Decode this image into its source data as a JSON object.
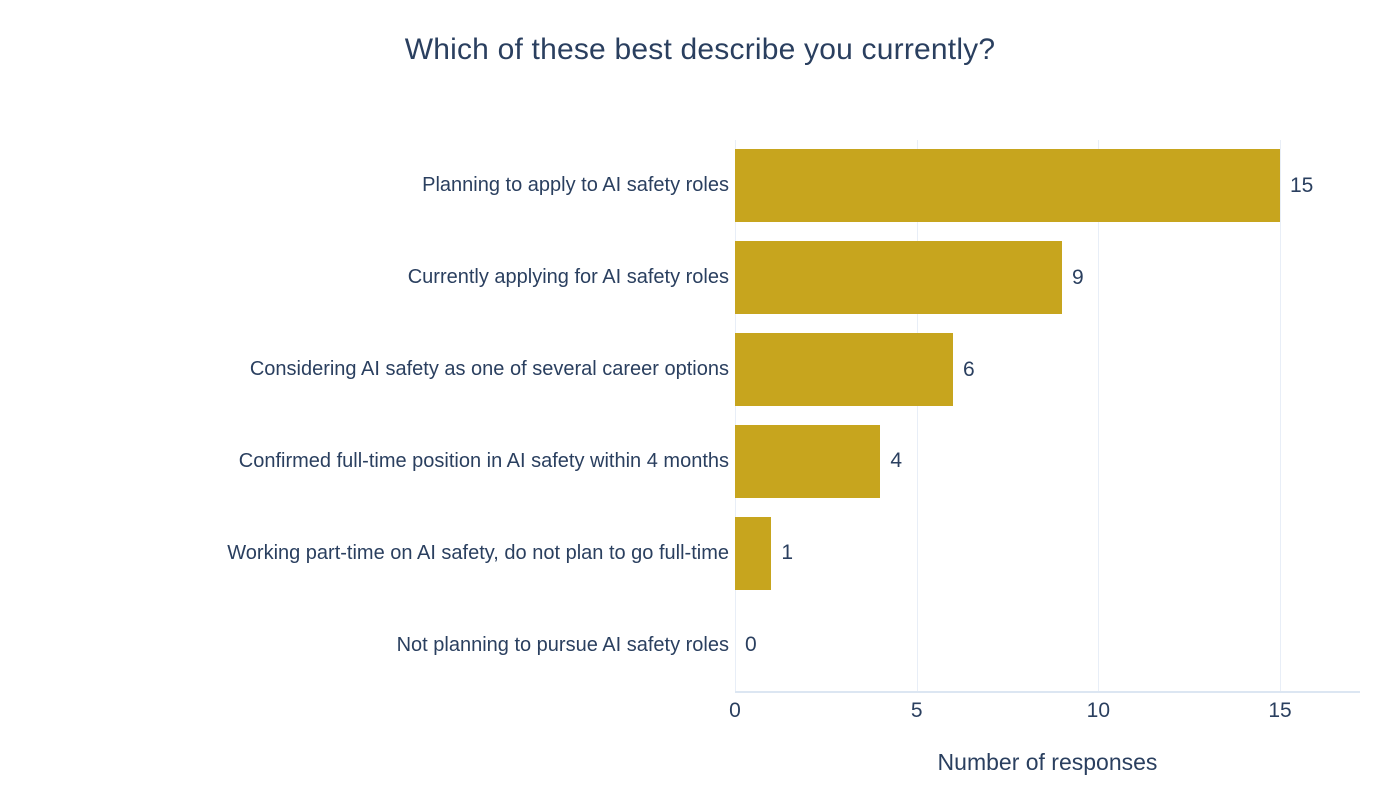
{
  "title": "Which of these best describe you currently?",
  "chart_data": {
    "type": "bar",
    "orientation": "horizontal",
    "title": "Which of these best describe you currently?",
    "categories": [
      "Planning to apply to AI safety roles",
      "Currently applying for AI safety roles",
      "Considering AI safety as one of several career options",
      "Confirmed full-time position in AI safety within 4 months",
      "Working part-time on AI safety, do not plan to go full-time",
      "Not planning to pursue AI safety roles"
    ],
    "values": [
      15,
      9,
      6,
      4,
      1,
      0
    ],
    "value_labels": [
      "15",
      "9",
      "6",
      "4",
      "1",
      "0"
    ],
    "xlabel": "Number of responses",
    "ylabel": "",
    "xticks": [
      0,
      5,
      10,
      15
    ],
    "xlim": [
      0,
      17.2
    ],
    "grid": true,
    "legend_position": "none",
    "colors": {
      "bar": "#c7a51e",
      "text": "#2a3f5f",
      "gridline": "#e8eef7",
      "axis_line": "#dce6f2",
      "background": "#ffffff"
    }
  }
}
